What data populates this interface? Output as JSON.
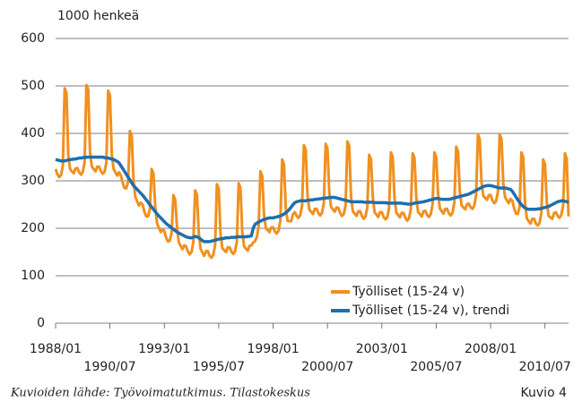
{
  "chart_data": {
    "type": "line",
    "y_label": "1000 henkeä",
    "x": [
      "1988/01",
      "1988/02",
      "1988/03",
      "1988/04",
      "1988/05",
      "1988/06",
      "1988/07",
      "1988/08",
      "1988/09",
      "1988/10",
      "1988/11",
      "1988/12",
      "1989/01",
      "1989/02",
      "1989/03",
      "1989/04",
      "1989/05",
      "1989/06",
      "1989/07",
      "1989/08",
      "1989/09",
      "1989/10",
      "1989/11",
      "1989/12",
      "1990/01",
      "1990/02",
      "1990/03",
      "1990/04",
      "1990/05",
      "1990/06",
      "1990/07",
      "1990/08",
      "1990/09",
      "1990/10",
      "1990/11",
      "1990/12",
      "1991/01",
      "1991/02",
      "1991/03",
      "1991/04",
      "1991/05",
      "1991/06",
      "1991/07",
      "1991/08",
      "1991/09",
      "1991/10",
      "1991/11",
      "1991/12",
      "1992/01",
      "1992/02",
      "1992/03",
      "1992/04",
      "1992/05",
      "1992/06",
      "1992/07",
      "1992/08",
      "1992/09",
      "1992/10",
      "1992/11",
      "1992/12",
      "1993/01",
      "1993/02",
      "1993/03",
      "1993/04",
      "1993/05",
      "1993/06",
      "1993/07",
      "1993/08",
      "1993/09",
      "1993/10",
      "1993/11",
      "1993/12",
      "1994/01",
      "1994/02",
      "1994/03",
      "1994/04",
      "1994/05",
      "1994/06",
      "1994/07",
      "1994/08",
      "1994/09",
      "1994/10",
      "1994/11",
      "1994/12",
      "1995/01",
      "1995/02",
      "1995/03",
      "1995/04",
      "1995/05",
      "1995/06",
      "1995/07",
      "1995/08",
      "1995/09",
      "1995/10",
      "1995/11",
      "1995/12",
      "1996/01",
      "1996/02",
      "1996/03",
      "1996/04",
      "1996/05",
      "1996/06",
      "1996/07",
      "1996/08",
      "1996/09",
      "1996/10",
      "1996/11",
      "1996/12",
      "1997/01",
      "1997/02",
      "1997/03",
      "1997/04",
      "1997/05",
      "1997/06",
      "1997/07",
      "1997/08",
      "1997/09",
      "1997/10",
      "1997/11",
      "1997/12",
      "1998/01",
      "1998/02",
      "1998/03",
      "1998/04",
      "1998/05",
      "1998/06",
      "1998/07",
      "1998/08",
      "1998/09",
      "1998/10",
      "1998/11",
      "1998/12",
      "1999/01",
      "1999/02",
      "1999/03",
      "1999/04",
      "1999/05",
      "1999/06",
      "1999/07",
      "1999/08",
      "1999/09",
      "1999/10",
      "1999/11",
      "1999/12",
      "2000/01",
      "2000/02",
      "2000/03",
      "2000/04",
      "2000/05",
      "2000/06",
      "2000/07",
      "2000/08",
      "2000/09",
      "2000/10",
      "2000/11",
      "2000/12",
      "2001/01",
      "2001/02",
      "2001/03",
      "2001/04",
      "2001/05",
      "2001/06",
      "2001/07",
      "2001/08",
      "2001/09",
      "2001/10",
      "2001/11",
      "2001/12",
      "2002/01",
      "2002/02",
      "2002/03",
      "2002/04",
      "2002/05",
      "2002/06",
      "2002/07",
      "2002/08",
      "2002/09",
      "2002/10",
      "2002/11",
      "2002/12",
      "2003/01",
      "2003/02",
      "2003/03",
      "2003/04",
      "2003/05",
      "2003/06",
      "2003/07",
      "2003/08",
      "2003/09",
      "2003/10",
      "2003/11",
      "2003/12",
      "2004/01",
      "2004/02",
      "2004/03",
      "2004/04",
      "2004/05",
      "2004/06",
      "2004/07",
      "2004/08",
      "2004/09",
      "2004/10",
      "2004/11",
      "2004/12",
      "2005/01",
      "2005/02",
      "2005/03",
      "2005/04",
      "2005/05",
      "2005/06",
      "2005/07",
      "2005/08",
      "2005/09",
      "2005/10",
      "2005/11",
      "2005/12",
      "2006/01",
      "2006/02",
      "2006/03",
      "2006/04",
      "2006/05",
      "2006/06",
      "2006/07",
      "2006/08",
      "2006/09",
      "2006/10",
      "2006/11",
      "2006/12",
      "2007/01",
      "2007/02",
      "2007/03",
      "2007/04",
      "2007/05",
      "2007/06",
      "2007/07",
      "2007/08",
      "2007/09",
      "2007/10",
      "2007/11",
      "2007/12",
      "2008/01",
      "2008/02",
      "2008/03",
      "2008/04",
      "2008/05",
      "2008/06",
      "2008/07",
      "2008/08",
      "2008/09",
      "2008/10",
      "2008/11",
      "2008/12",
      "2009/01",
      "2009/02",
      "2009/03",
      "2009/04",
      "2009/05",
      "2009/06",
      "2009/07",
      "2009/08",
      "2009/09",
      "2009/10",
      "2009/11",
      "2009/12",
      "2010/01",
      "2010/02",
      "2010/03",
      "2010/04",
      "2010/05",
      "2010/06",
      "2010/07",
      "2010/08",
      "2010/09",
      "2010/10",
      "2010/11",
      "2010/12",
      "2011/01",
      "2011/02",
      "2011/03",
      "2011/04",
      "2011/05",
      "2011/06",
      "2011/07",
      "2011/08"
    ],
    "series": [
      {
        "name": "Työlliset (15-24 v)",
        "color": "#f0901e",
        "values": [
          325,
          314,
          308,
          312,
          332,
          495,
          485,
          354,
          325,
          320,
          316,
          326,
          327,
          318,
          313,
          319,
          339,
          502,
          492,
          360,
          330,
          325,
          320,
          330,
          330,
          320,
          315,
          319,
          338,
          490,
          480,
          356,
          325,
          318,
          311,
          318,
          312,
          296,
          285,
          284,
          298,
          405,
          395,
          300,
          266,
          257,
          248,
          254,
          250,
          235,
          225,
          225,
          240,
          325,
          315,
          245,
          210,
          201,
          192,
          198,
          194,
          180,
          172,
          174,
          191,
          270,
          260,
          202,
          170,
          163,
          156,
          164,
          162,
          151,
          145,
          150,
          171,
          280,
          270,
          190,
          157,
          149,
          142,
          152,
          152,
          142,
          138,
          144,
          165,
          293,
          283,
          188,
          158,
          154,
          150,
          160,
          160,
          151,
          146,
          151,
          172,
          295,
          285,
          192,
          162,
          157,
          153,
          163,
          164,
          170,
          173,
          181,
          203,
          320,
          310,
          229,
          200,
          196,
          192,
          202,
          202,
          193,
          189,
          195,
          216,
          345,
          335,
          243,
          216,
          215,
          215,
          230,
          234,
          226,
          222,
          228,
          248,
          375,
          365,
          269,
          239,
          235,
          230,
          241,
          241,
          232,
          227,
          233,
          253,
          378,
          368,
          275,
          245,
          240,
          235,
          244,
          243,
          232,
          226,
          230,
          249,
          383,
          373,
          266,
          236,
          231,
          226,
          236,
          236,
          226,
          220,
          225,
          245,
          355,
          345,
          265,
          234,
          229,
          224,
          234,
          234,
          224,
          219,
          223,
          243,
          360,
          350,
          263,
          233,
          228,
          223,
          233,
          232,
          222,
          216,
          221,
          241,
          358,
          348,
          264,
          234,
          230,
          225,
          236,
          237,
          228,
          224,
          230,
          251,
          360,
          350,
          273,
          242,
          236,
          231,
          241,
          241,
          231,
          227,
          233,
          254,
          372,
          362,
          277,
          248,
          244,
          240,
          251,
          252,
          244,
          241,
          248,
          270,
          398,
          388,
          296,
          268,
          264,
          260,
          270,
          270,
          259,
          253,
          257,
          276,
          398,
          388,
          295,
          265,
          259,
          253,
          262,
          258,
          242,
          231,
          230,
          245,
          360,
          350,
          253,
          221,
          215,
          210,
          220,
          220,
          210,
          206,
          211,
          232,
          345,
          335,
          255,
          226,
          223,
          220,
          232,
          234,
          226,
          222,
          228,
          248,
          358,
          346,
          225
        ]
      },
      {
        "name": "Työlliset (15-24 v), trendi",
        "color": "#1e6fae",
        "values": [
          345,
          344,
          343,
          342,
          342,
          342,
          343,
          344,
          345,
          345,
          346,
          346,
          347,
          348,
          348,
          349,
          349,
          350,
          350,
          350,
          350,
          350,
          350,
          350,
          350,
          350,
          350,
          349,
          348,
          348,
          347,
          346,
          345,
          343,
          341,
          338,
          332,
          326,
          320,
          314,
          308,
          302,
          296,
          290,
          286,
          282,
          278,
          274,
          270,
          265,
          260,
          255,
          250,
          245,
          240,
          235,
          230,
          226,
          222,
          218,
          214,
          210,
          207,
          204,
          201,
          198,
          195,
          192,
          190,
          188,
          186,
          184,
          182,
          181,
          180,
          180,
          181,
          183,
          182,
          180,
          177,
          174,
          172,
          172,
          172,
          172,
          173,
          174,
          175,
          176,
          177,
          178,
          178,
          179,
          180,
          180,
          180,
          181,
          181,
          181,
          182,
          182,
          182,
          182,
          182,
          182,
          183,
          183,
          184,
          200,
          208,
          211,
          213,
          215,
          217,
          219,
          220,
          221,
          222,
          222,
          222,
          223,
          224,
          225,
          226,
          228,
          230,
          233,
          236,
          240,
          245,
          250,
          254,
          256,
          257,
          258,
          258,
          258,
          258,
          259,
          259,
          260,
          260,
          261,
          261,
          262,
          262,
          263,
          263,
          264,
          264,
          265,
          265,
          265,
          265,
          264,
          263,
          262,
          261,
          260,
          259,
          258,
          257,
          256,
          256,
          256,
          256,
          256,
          256,
          256,
          255,
          255,
          255,
          255,
          255,
          255,
          254,
          254,
          254,
          254,
          254,
          254,
          254,
          253,
          253,
          253,
          253,
          253,
          253,
          253,
          253,
          253,
          252,
          252,
          251,
          251,
          251,
          252,
          253,
          254,
          254,
          255,
          255,
          256,
          257,
          258,
          259,
          260,
          261,
          262,
          263,
          263,
          262,
          261,
          261,
          261,
          261,
          261,
          262,
          263,
          264,
          265,
          266,
          267,
          268,
          269,
          270,
          271,
          272,
          274,
          276,
          278,
          280,
          282,
          284,
          286,
          288,
          289,
          290,
          290,
          290,
          289,
          288,
          287,
          286,
          285,
          285,
          285,
          285,
          284,
          283,
          282,
          278,
          272,
          266,
          260,
          255,
          250,
          246,
          243,
          241,
          240,
          240,
          240,
          240,
          240,
          241,
          241,
          242,
          243,
          244,
          245,
          246,
          248,
          250,
          252,
          254,
          256,
          257,
          258,
          258,
          257,
          256,
          255
        ]
      }
    ],
    "ylim": [
      0,
      600
    ],
    "yticks": [
      0,
      100,
      200,
      300,
      400,
      500,
      600
    ],
    "grid": true,
    "legend": "lower right"
  },
  "footer": {
    "source": "Kuvioiden lähde: Työvoimatutkimus. Tilastokeskus",
    "label": "Kuvio 4"
  }
}
